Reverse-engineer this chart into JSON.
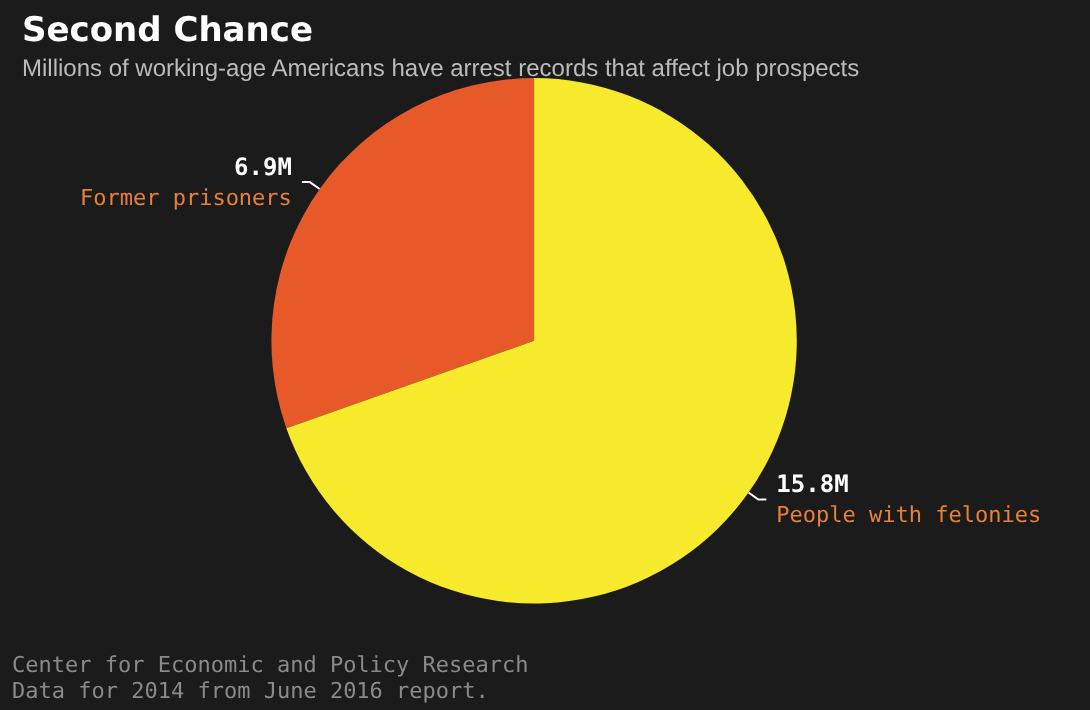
{
  "chart_data": {
    "type": "pie",
    "title": "Second Chance",
    "subtitle": "Millions of working-age Americans have arrest records that affect job prospects",
    "categories": [
      "Former prisoners",
      "People with felonies"
    ],
    "values": [
      6.9,
      15.8
    ],
    "value_labels": [
      "6.9M",
      "15.8M"
    ],
    "colors": [
      "#e8592a",
      "#f7e92c"
    ],
    "annotations": [
      "Center for Economic and Policy Research",
      "Data for 2014 from June 2016 report."
    ],
    "legend": false
  }
}
